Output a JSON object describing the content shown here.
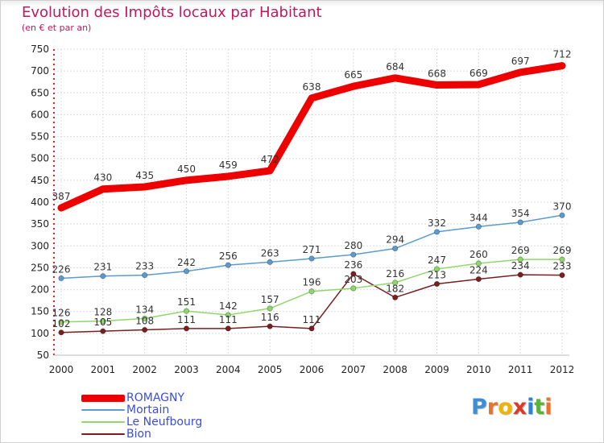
{
  "title": "Evolution des Impôts locaux par Habitant",
  "subtitle": "(en € et par an)",
  "brand": {
    "letters": [
      "P",
      "r",
      "o",
      "x",
      "i",
      "t",
      "i"
    ],
    "colors": [
      "#3c8fd6",
      "#e8742a",
      "#f0b400",
      "#d93a2a",
      "#2f84d0",
      "#5bb33a",
      "#e8742a"
    ]
  },
  "chart_data": {
    "type": "line",
    "title": "Evolution des Impôts locaux par Habitant",
    "subtitle": "(en € et par an)",
    "xlabel": "",
    "ylabel": "",
    "x": [
      "2000",
      "2001",
      "2002",
      "2003",
      "2004",
      "2005",
      "2006",
      "2007",
      "2008",
      "2009",
      "2010",
      "2011",
      "2012"
    ],
    "ylim": [
      50,
      750
    ],
    "yticks": [
      50,
      100,
      150,
      200,
      250,
      300,
      350,
      400,
      450,
      500,
      550,
      600,
      650,
      700,
      750
    ],
    "grid": true,
    "legend": "bottom-left",
    "series": [
      {
        "name": "ROMAGNY",
        "color": "#ee0000",
        "values": [
          387,
          430,
          435,
          450,
          459,
          472,
          638,
          665,
          684,
          668,
          669,
          697,
          712
        ]
      },
      {
        "name": "Mortain",
        "color": "#5a9bd0",
        "values": [
          226,
          231,
          233,
          242,
          256,
          263,
          271,
          280,
          294,
          332,
          344,
          354,
          370
        ]
      },
      {
        "name": "Le Neufbourg",
        "color": "#8ed86a",
        "values": [
          126,
          128,
          134,
          151,
          142,
          157,
          196,
          203,
          216,
          247,
          260,
          269,
          269
        ]
      },
      {
        "name": "Bion",
        "color": "#7a1f1f",
        "values": [
          102,
          105,
          108,
          111,
          111,
          116,
          111,
          236,
          182,
          213,
          224,
          234,
          233
        ]
      }
    ]
  }
}
